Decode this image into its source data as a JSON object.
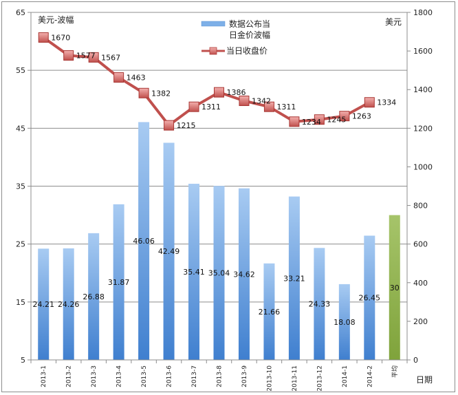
{
  "chart_data": {
    "type": "bar",
    "categories": [
      "2013-1",
      "2013-2",
      "2013-3",
      "2013-4",
      "2013-5",
      "2013-6",
      "2013-7",
      "2013-8",
      "2013-9",
      "2013-10",
      "2013-11",
      "2013-12",
      "2014-1",
      "2014-2",
      "平均"
    ],
    "bar_series": {
      "name": "数据公布当日金价波幅",
      "values": [
        24.21,
        24.26,
        26.88,
        31.87,
        46.06,
        42.49,
        35.41,
        35.04,
        34.62,
        21.66,
        33.21,
        24.33,
        18.08,
        26.45,
        30
      ],
      "color": "#5b9bd5",
      "highlight_color": "#9bbb59",
      "highlight_category": "平均"
    },
    "line_series": {
      "name": "当日收盘价",
      "values": [
        1670,
        1577,
        1567,
        1463,
        1382,
        1215,
        1311,
        1386,
        1342,
        1311,
        1234,
        1245,
        1263,
        1334
      ],
      "color": "#c0504d"
    },
    "y_left": {
      "label": "美元-波幅",
      "min": 5,
      "max": 65,
      "ticks": [
        5,
        15,
        25,
        35,
        45,
        55,
        65
      ]
    },
    "y_right": {
      "label": "美元",
      "min": 0,
      "max": 1800,
      "ticks": [
        0,
        200,
        400,
        600,
        800,
        1000,
        1200,
        1400,
        1600,
        1800
      ]
    },
    "xlabel": "日期",
    "grid": true,
    "legend_position": "top-center"
  },
  "legend": {
    "bar_line1": "数据公布当",
    "bar_line2": "日金价波幅",
    "line_label": "当日收盘价"
  }
}
